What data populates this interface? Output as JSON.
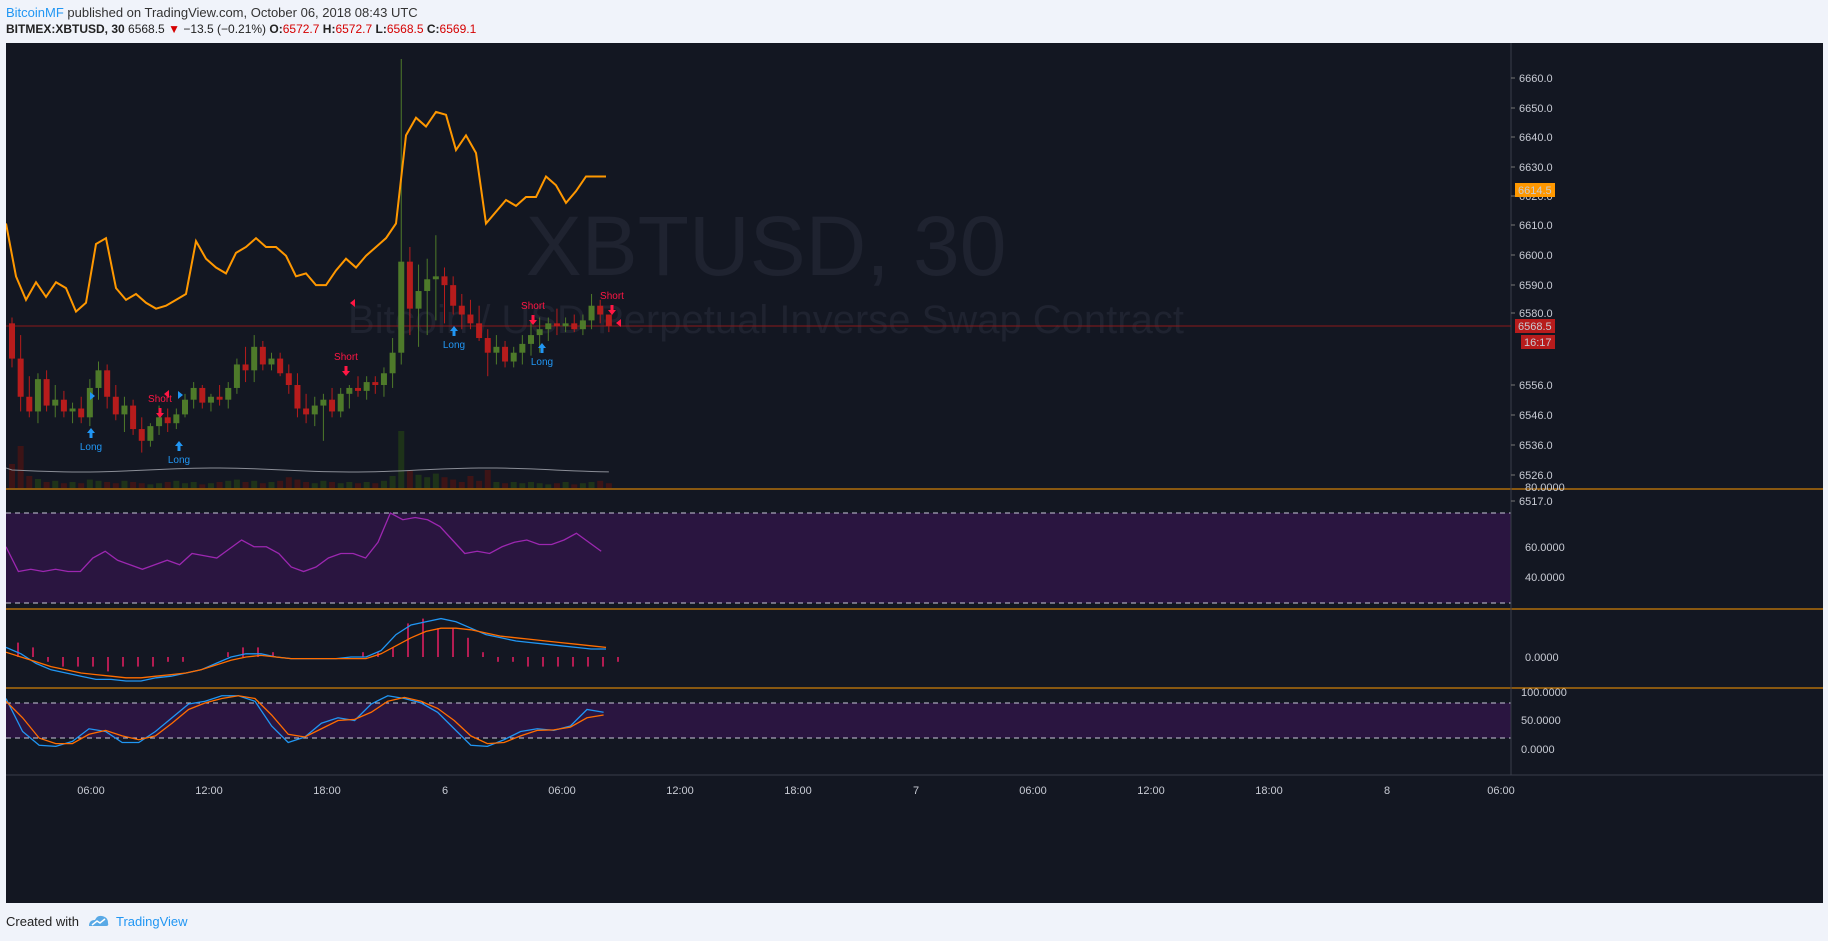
{
  "header": {
    "author": "BitcoinMF",
    "published_text": " published on TradingView.com, October 06, 2018 08:43 UTC",
    "symbol": "BITMEX:XBTUSD, 30",
    "last": "6568.5",
    "change": "−13.5 (−0.21%)",
    "o_label": "O:",
    "o": "6572.7",
    "h_label": "H:",
    "h": "6572.7",
    "l_label": "L:",
    "l": "6568.5",
    "c_label": "C:",
    "c": "6569.1"
  },
  "watermark": {
    "symbol": "XBTUSD, 30",
    "description": "Bitcoin / USD Perpetual Inverse Swap Contract"
  },
  "colors": {
    "background": "#131722",
    "up": "#4e7a2a",
    "down": "#b71c1c",
    "ma_line": "#ff9800",
    "rsi": "#9c27b0",
    "macd": "#2196f3",
    "signal": "#ff6d00",
    "divider": "#ff9800",
    "long": "#2196f3",
    "short": "#ff1744"
  },
  "price_axis": {
    "ticks": [
      "6660.0",
      "6650.0",
      "6640.0",
      "6630.0",
      "6620.0",
      "6610.0",
      "6600.0",
      "6590.0",
      "6580.0",
      "6556.0",
      "6546.0",
      "6536.0",
      "6526.0",
      "6517.0"
    ],
    "ma_label": "6614.5",
    "price_label": "6568.5",
    "countdown": "16:17"
  },
  "rsi_axis": {
    "ticks": [
      "80.0000",
      "60.0000",
      "40.0000"
    ]
  },
  "macd_axis": {
    "ticks": [
      "0.0000"
    ]
  },
  "stoch_axis": {
    "ticks": [
      "100.0000",
      "50.0000",
      "0.0000"
    ]
  },
  "time_axis": {
    "ticks": [
      "06:00",
      "12:00",
      "18:00",
      "6",
      "06:00",
      "12:00",
      "18:00",
      "7",
      "06:00",
      "12:00",
      "18:00",
      "8",
      "06:00"
    ]
  },
  "signals": {
    "long_label": "Long",
    "short_label": "Short"
  },
  "footer": {
    "created": "Created with",
    "brand": "TradingView"
  },
  "chart_data": {
    "type": "candlestick",
    "symbol": "BITMEX:XBTUSD",
    "interval": "30",
    "price_scale": [
      6517,
      6660
    ],
    "candles": [
      [
        6570,
        6572,
        6555,
        6558
      ],
      [
        6558,
        6566,
        6540,
        6545
      ],
      [
        6545,
        6552,
        6538,
        6540
      ],
      [
        6540,
        6553,
        6536,
        6551
      ],
      [
        6551,
        6554,
        6540,
        6542
      ],
      [
        6542,
        6549,
        6538,
        6544
      ],
      [
        6544,
        6547,
        6538,
        6540
      ],
      [
        6540,
        6543,
        6536,
        6541
      ],
      [
        6541,
        6545,
        6536,
        6538
      ],
      [
        6538,
        6551,
        6535,
        6548
      ],
      [
        6548,
        6557,
        6544,
        6554
      ],
      [
        6554,
        6556,
        6541,
        6545
      ],
      [
        6545,
        6549,
        6537,
        6539
      ],
      [
        6539,
        6545,
        6533,
        6542
      ],
      [
        6542,
        6544,
        6532,
        6534
      ],
      [
        6534,
        6538,
        6526,
        6530
      ],
      [
        6530,
        6536,
        6528,
        6535
      ],
      [
        6535,
        6542,
        6532,
        6538
      ],
      [
        6538,
        6541,
        6533,
        6536
      ],
      [
        6536,
        6541,
        6534,
        6539
      ],
      [
        6539,
        6546,
        6538,
        6544
      ],
      [
        6544,
        6550,
        6541,
        6548
      ],
      [
        6548,
        6549,
        6541,
        6543
      ],
      [
        6543,
        6546,
        6540,
        6545
      ],
      [
        6545,
        6549,
        6542,
        6544
      ],
      [
        6544,
        6550,
        6541,
        6548
      ],
      [
        6548,
        6558,
        6546,
        6556
      ],
      [
        6556,
        6562,
        6550,
        6554
      ],
      [
        6554,
        6566,
        6550,
        6562
      ],
      [
        6562,
        6564,
        6554,
        6556
      ],
      [
        6556,
        6560,
        6554,
        6558
      ],
      [
        6558,
        6560,
        6552,
        6553
      ],
      [
        6553,
        6556,
        6546,
        6549
      ],
      [
        6549,
        6553,
        6538,
        6541
      ],
      [
        6541,
        6546,
        6536,
        6539
      ],
      [
        6539,
        6545,
        6535,
        6542
      ],
      [
        6542,
        6546,
        6530,
        6544
      ],
      [
        6544,
        6548,
        6538,
        6540
      ],
      [
        6540,
        6548,
        6538,
        6546
      ],
      [
        6546,
        6549,
        6541,
        6548
      ],
      [
        6548,
        6552,
        6545,
        6547
      ],
      [
        6547,
        6552,
        6544,
        6550
      ],
      [
        6550,
        6552,
        6546,
        6549
      ],
      [
        6549,
        6555,
        6545,
        6553
      ],
      [
        6553,
        6565,
        6548,
        6560
      ],
      [
        6560,
        6660,
        6556,
        6591
      ],
      [
        6591,
        6596,
        6566,
        6575
      ],
      [
        6575,
        6590,
        6562,
        6581
      ],
      [
        6581,
        6592,
        6566,
        6585
      ],
      [
        6585,
        6600,
        6571,
        6586
      ],
      [
        6586,
        6589,
        6570,
        6583
      ],
      [
        6583,
        6586,
        6573,
        6576
      ],
      [
        6576,
        6580,
        6568,
        6573
      ],
      [
        6573,
        6578,
        6568,
        6570
      ],
      [
        6570,
        6576,
        6564,
        6565
      ],
      [
        6565,
        6568,
        6552,
        6560
      ],
      [
        6560,
        6566,
        6556,
        6562
      ],
      [
        6562,
        6564,
        6555,
        6557
      ],
      [
        6557,
        6562,
        6555,
        6560
      ],
      [
        6560,
        6566,
        6556,
        6563
      ],
      [
        6563,
        6571,
        6559,
        6566
      ],
      [
        6566,
        6572,
        6560,
        6568
      ],
      [
        6568,
        6572,
        6564,
        6570
      ],
      [
        6570,
        6575,
        6566,
        6569
      ],
      [
        6569,
        6572,
        6567,
        6570
      ],
      [
        6570,
        6573,
        6567,
        6568
      ],
      [
        6568,
        6573,
        6566,
        6571
      ],
      [
        6571,
        6580,
        6568,
        6576
      ],
      [
        6576,
        6578,
        6570,
        6573
      ],
      [
        6573,
        6573,
        6567,
        6569
      ]
    ],
    "ma": [
      6604,
      6586,
      6578,
      6584,
      6579,
      6584,
      6582,
      6574,
      6577,
      6597,
      6599,
      6582,
      6578,
      6580,
      6577,
      6575,
      6576,
      6578,
      6580,
      6598,
      6592,
      6589,
      6587,
      6594,
      6596,
      6599,
      6596,
      6596,
      6593,
      6586,
      6587,
      6583,
      6583,
      6588,
      6592,
      6589,
      6593,
      6596,
      6599,
      6604,
      6634,
      6640,
      6637,
      6642,
      6641,
      6629,
      6634,
      6628,
      6604,
      6608,
      6612,
      6610,
      6613,
      6613,
      6620,
      6617,
      6611,
      6615,
      6620,
      6620,
      6620
    ],
    "rsi": [
      55,
      44,
      45,
      44,
      45,
      44,
      44,
      50,
      53,
      49,
      47,
      45,
      47,
      49,
      47,
      52,
      51,
      50,
      54,
      58,
      55,
      55,
      52,
      46,
      44,
      46,
      50,
      52,
      52,
      50,
      57,
      70,
      67,
      68,
      67,
      64,
      58,
      52,
      53,
      52,
      55,
      57,
      58,
      56,
      56,
      58,
      61,
      57,
      53
    ],
    "rsi_levels": [
      70,
      30
    ],
    "macd": [
      6,
      2,
      -4,
      -8,
      -10,
      -12,
      -14,
      -14,
      -15,
      -15,
      -13,
      -12,
      -10,
      -8,
      -4,
      0,
      2,
      2,
      0,
      -1,
      -1,
      -1,
      -1,
      0,
      0,
      4,
      14,
      20,
      22,
      24,
      22,
      18,
      14,
      12,
      10,
      9,
      8,
      7,
      6,
      5,
      5
    ],
    "macd_signal": [
      3,
      0,
      -3,
      -6,
      -8,
      -10,
      -11,
      -12,
      -13,
      -13,
      -12,
      -11,
      -10,
      -8,
      -5,
      -2,
      0,
      1,
      0,
      -1,
      -1,
      -1,
      -1,
      -1,
      -1,
      2,
      7,
      12,
      16,
      18,
      18,
      17,
      15,
      13,
      12,
      11,
      10,
      9,
      8,
      7,
      6
    ],
    "stoch_k": [
      90,
      30,
      5,
      3,
      12,
      35,
      30,
      10,
      10,
      30,
      55,
      80,
      85,
      95,
      95,
      85,
      40,
      10,
      20,
      45,
      55,
      50,
      80,
      95,
      90,
      82,
      65,
      35,
      5,
      3,
      15,
      30,
      35,
      32,
      40,
      70,
      65
    ],
    "stoch_d": [
      85,
      55,
      18,
      8,
      8,
      25,
      32,
      22,
      15,
      22,
      45,
      70,
      82,
      90,
      95,
      90,
      60,
      25,
      20,
      35,
      50,
      52,
      65,
      85,
      92,
      85,
      72,
      50,
      22,
      8,
      10,
      22,
      32,
      33,
      38,
      55,
      60
    ],
    "stoch_levels": [
      80,
      20
    ]
  }
}
